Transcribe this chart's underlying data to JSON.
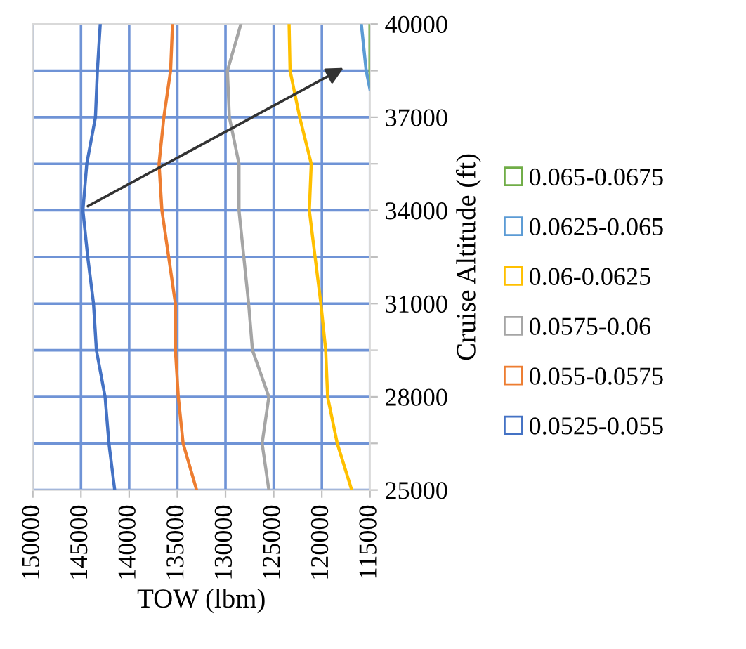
{
  "chart_data": {
    "type": "line",
    "xlabel": "TOW (lbm)",
    "ylabel": "Cruise Altitude (ft)",
    "xlim": [
      150000,
      115000
    ],
    "xticks": [
      150000,
      145000,
      140000,
      135000,
      130000,
      125000,
      120000,
      115000
    ],
    "ylim": [
      25000,
      40000
    ],
    "yticks": [
      25000,
      {
        "value": 26500,
        "label": null
      },
      28000,
      {
        "value": 29500,
        "label": null
      },
      31000,
      {
        "value": 32500,
        "label": null
      },
      34000,
      {
        "value": 35500,
        "label": null
      },
      37000,
      {
        "value": 38500,
        "label": null
      },
      40000
    ],
    "grid": true,
    "legend": "right",
    "marker": "none",
    "line_style": "solid",
    "series": [
      {
        "name": "0.065-0.0675",
        "color": "#70ad47",
        "x": [
          115000,
          115000
        ],
        "values": [
          40000,
          38000
        ]
      },
      {
        "name": "0.0625-0.065",
        "color": "#5b9bd5",
        "x": [
          115900,
          115400,
          115000
        ],
        "values": [
          40000,
          38500,
          37900
        ]
      },
      {
        "name": "0.06-0.0625",
        "color": "#ffc000",
        "x": [
          123400,
          123300,
          122300,
          121100,
          121300,
          120700,
          120100,
          119600,
          119400,
          118400,
          116900
        ],
        "values": [
          40000,
          38500,
          37000,
          35500,
          34000,
          32500,
          31000,
          29500,
          28000,
          26500,
          25000
        ]
      },
      {
        "name": "0.0575-0.06",
        "color": "#a5a5a5",
        "x": [
          128400,
          129800,
          129600,
          128600,
          128600,
          128100,
          127600,
          127200,
          125500,
          126200,
          125500
        ],
        "values": [
          40000,
          38500,
          37000,
          35500,
          34000,
          32500,
          31000,
          29500,
          28000,
          26500,
          25000
        ]
      },
      {
        "name": "0.055-0.0575",
        "color": "#ed7d31",
        "x": [
          135500,
          135700,
          136400,
          136900,
          136600,
          135900,
          135200,
          135200,
          134900,
          134400,
          133000
        ],
        "values": [
          40000,
          38500,
          37000,
          35500,
          34000,
          32500,
          31000,
          29500,
          28000,
          26500,
          25000
        ]
      },
      {
        "name": "0.0525-0.055",
        "color": "#4472c4",
        "x": [
          143000,
          143300,
          143500,
          144400,
          144800,
          144300,
          143700,
          143400,
          142500,
          142100,
          141500
        ],
        "values": [
          40000,
          38500,
          37000,
          35500,
          34000,
          32500,
          31000,
          29500,
          28000,
          26500,
          25000
        ]
      }
    ]
  }
}
